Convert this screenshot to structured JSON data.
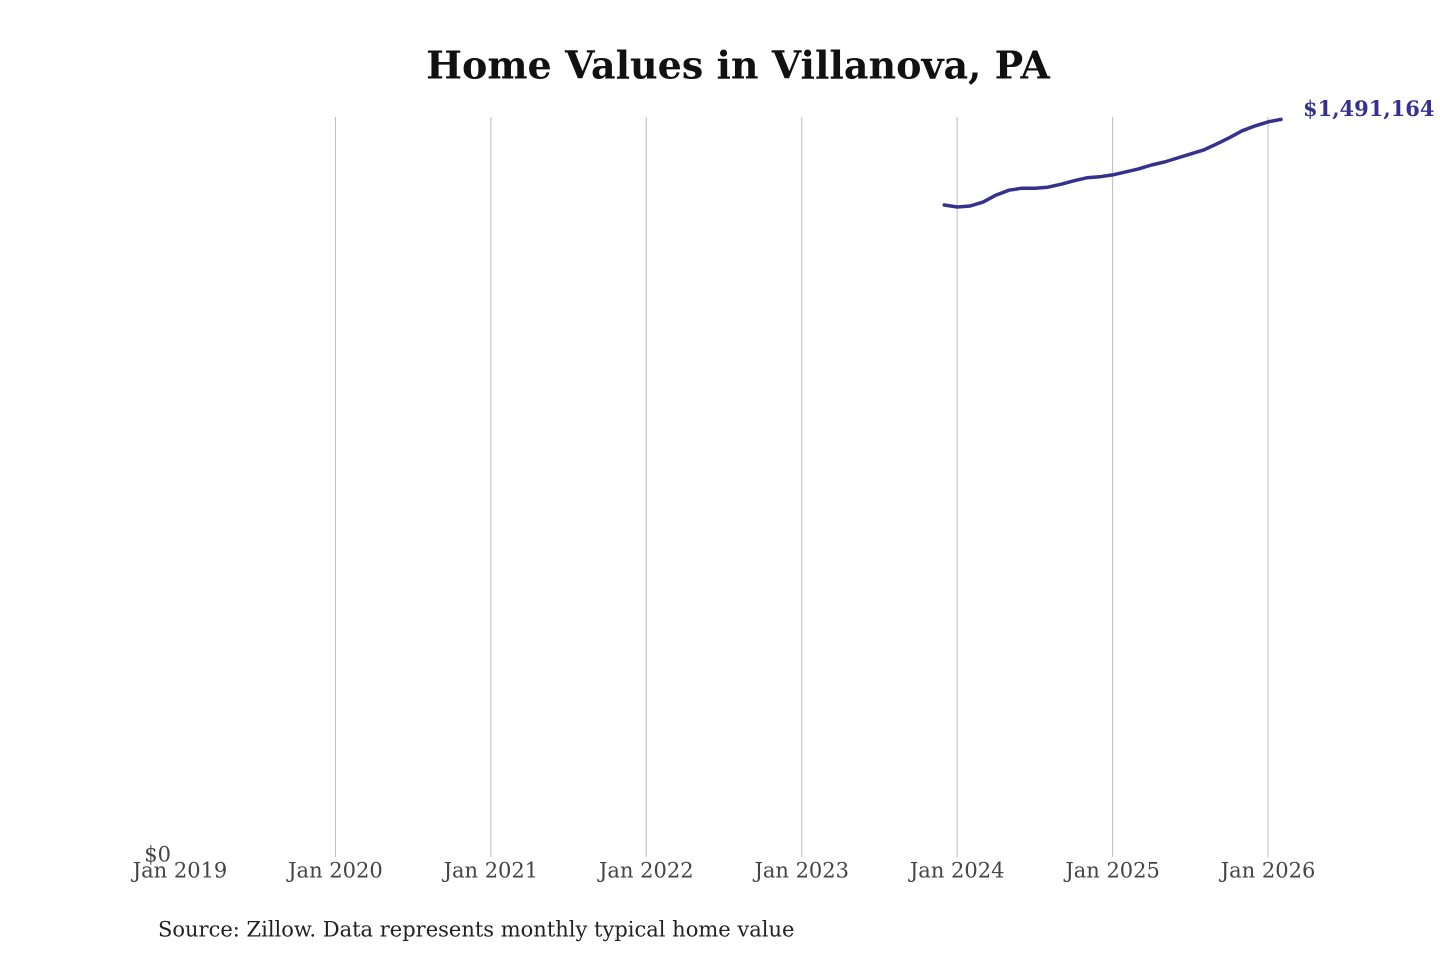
{
  "chart_data": {
    "type": "line",
    "title": "Home Values in Villanova, PA",
    "x": [
      "2023-12",
      "2024-01",
      "2024-02",
      "2024-03",
      "2024-04",
      "2024-05",
      "2024-06",
      "2024-07",
      "2024-08",
      "2024-09",
      "2024-10",
      "2024-11",
      "2024-12",
      "2025-01",
      "2025-02",
      "2025-03",
      "2025-04",
      "2025-05",
      "2025-06",
      "2025-07",
      "2025-08",
      "2025-09",
      "2025-10",
      "2025-11",
      "2025-12",
      "2026-01",
      "2026-02"
    ],
    "values": [
      1318000,
      1314000,
      1316000,
      1324000,
      1338000,
      1348000,
      1352000,
      1352000,
      1354000,
      1360000,
      1367000,
      1373000,
      1375000,
      1379000,
      1385000,
      1391000,
      1399000,
      1405000,
      1413000,
      1421000,
      1429000,
      1441000,
      1454000,
      1468000,
      1478000,
      1486000,
      1491164
    ],
    "value_labels": [
      null,
      null,
      null,
      null,
      null,
      null,
      null,
      null,
      null,
      null,
      null,
      null,
      null,
      null,
      null,
      null,
      null,
      null,
      null,
      null,
      null,
      null,
      null,
      null,
      null,
      null,
      "$1,491,164"
    ],
    "color": "#36318f",
    "xlim": [
      "2019-01",
      "2026-02"
    ],
    "xticks": [
      {
        "value": "2019-01",
        "label": "Jan 2019"
      },
      {
        "value": "2020-01",
        "label": "Jan 2020"
      },
      {
        "value": "2021-01",
        "label": "Jan 2021"
      },
      {
        "value": "2022-01",
        "label": "Jan 2022"
      },
      {
        "value": "2023-01",
        "label": "Jan 2023"
      },
      {
        "value": "2024-01",
        "label": "Jan 2024"
      },
      {
        "value": "2025-01",
        "label": "Jan 2025"
      },
      {
        "value": "2026-01",
        "label": "Jan 2026"
      }
    ],
    "ylim": [
      0,
      1500000
    ],
    "yticks": [
      {
        "value": 0,
        "label": "$0"
      }
    ],
    "grid": true,
    "source": "Source: Zillow. Data represents monthly typical home value"
  }
}
